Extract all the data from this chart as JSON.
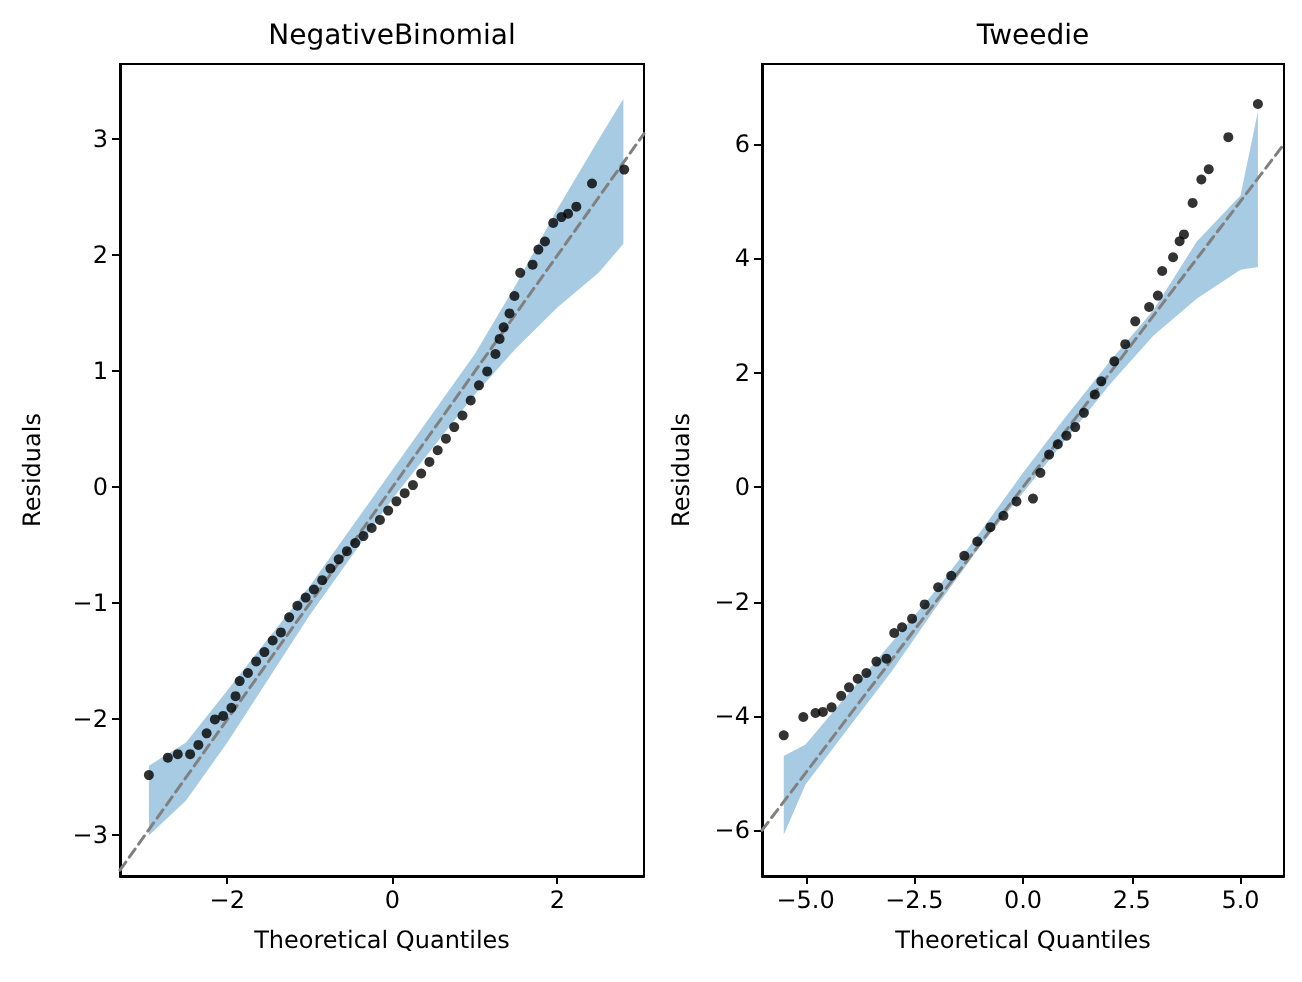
{
  "chart_data": [
    {
      "type": "scatter",
      "title": "NegativeBinomial",
      "xlabel": "Theoretical Quantiles",
      "ylabel": "Residuals",
      "xlim": [
        -3.3,
        3.05
      ],
      "ylim": [
        -3.35,
        3.65
      ],
      "xticks": [
        -2,
        0,
        2
      ],
      "yticks": [
        -3,
        -2,
        -1,
        0,
        1,
        2,
        3
      ],
      "grid": false,
      "marker": "circle",
      "series": [
        {
          "type": "line",
          "marker": "none",
          "color": "#808080",
          "line_style": "dashed",
          "x": [
            -3.3,
            -2.95,
            -2.5,
            -2,
            -1.5,
            -1,
            -0.5,
            0,
            0.5,
            1,
            1.5,
            2,
            2.5,
            2.8,
            3.05
          ],
          "values": [
            -3.3,
            -2.95,
            -2.5,
            -2,
            -1.5,
            -1,
            -0.5,
            0,
            0.5,
            1,
            1.5,
            2,
            2.5,
            2.8,
            3.05
          ],
          "lower": [
            null,
            -3.0,
            -2.7,
            -2.2,
            -1.65,
            -1.1,
            -0.6,
            -0.1,
            0.35,
            0.8,
            1.2,
            1.55,
            1.85,
            2.1,
            null
          ],
          "upper": [
            null,
            -2.4,
            -2.2,
            -1.75,
            -1.3,
            -0.85,
            -0.35,
            0.15,
            0.65,
            1.15,
            1.75,
            2.4,
            3.0,
            3.35,
            null
          ]
        },
        {
          "color": "#000000",
          "x": [
            -2.95,
            -2.72,
            -2.6,
            -2.45,
            -2.35,
            -2.25,
            -2.15,
            -2.05,
            -1.95,
            -1.9,
            -1.85,
            -1.75,
            -1.65,
            -1.55,
            -1.45,
            -1.35,
            -1.25,
            -1.15,
            -1.05,
            -0.95,
            -0.85,
            -0.75,
            -0.65,
            -0.55,
            -0.45,
            -0.35,
            -0.25,
            -0.15,
            -0.05,
            0.05,
            0.15,
            0.25,
            0.35,
            0.45,
            0.55,
            0.65,
            0.75,
            0.85,
            0.95,
            1.05,
            1.15,
            1.25,
            1.3,
            1.35,
            1.42,
            1.48,
            1.55,
            1.7,
            1.77,
            1.85,
            1.95,
            2.05,
            2.13,
            2.23,
            2.42,
            2.81
          ],
          "values": [
            -2.48,
            -2.33,
            -2.3,
            -2.3,
            -2.22,
            -2.12,
            -2.0,
            -1.97,
            -1.9,
            -1.8,
            -1.67,
            -1.6,
            -1.5,
            -1.42,
            -1.32,
            -1.25,
            -1.12,
            -1.02,
            -0.95,
            -0.88,
            -0.8,
            -0.7,
            -0.62,
            -0.55,
            -0.48,
            -0.42,
            -0.35,
            -0.28,
            -0.2,
            -0.12,
            -0.05,
            0.02,
            0.12,
            0.22,
            0.32,
            0.42,
            0.52,
            0.62,
            0.75,
            0.88,
            1.0,
            1.15,
            1.28,
            1.38,
            1.5,
            1.65,
            1.85,
            1.92,
            2.05,
            2.12,
            2.28,
            2.33,
            2.36,
            2.42,
            2.62,
            2.74
          ]
        }
      ]
    },
    {
      "type": "scatter",
      "title": "Tweedie",
      "xlabel": "Theoretical Quantiles",
      "ylabel": "Residuals",
      "xlim": [
        -6,
        6
      ],
      "ylim": [
        -6.8,
        7.4
      ],
      "xticks": [
        {
          "value": -5,
          "label": "−5.0"
        },
        {
          "value": -2.5,
          "label": "−2.5"
        },
        {
          "value": 0,
          "label": "0.0"
        },
        {
          "value": 2.5,
          "label": "2.5"
        },
        {
          "value": 5,
          "label": "5.0"
        }
      ],
      "yticks": [
        -6,
        -4,
        -2,
        0,
        2,
        4,
        6
      ],
      "grid": false,
      "marker": "circle",
      "series": [
        {
          "type": "line",
          "marker": "none",
          "color": "#808080",
          "line_style": "dashed",
          "x": [
            -6,
            -5.5,
            -5,
            -4,
            -3,
            -2,
            -1,
            0,
            1,
            2,
            3,
            4,
            5,
            5.4,
            6
          ],
          "values": [
            -6,
            -5.5,
            -5,
            -4,
            -3,
            -2,
            -1,
            0,
            1,
            2,
            3,
            4,
            5,
            5.4,
            6
          ],
          "lower": [
            null,
            -6.08,
            -5.2,
            -4.2,
            -3.2,
            -2.1,
            -1.05,
            -0.1,
            0.85,
            1.8,
            2.65,
            3.3,
            3.8,
            3.85,
            null
          ],
          "upper": [
            null,
            -4.7,
            -4.5,
            -3.6,
            -2.7,
            -1.8,
            -0.8,
            0.25,
            1.25,
            2.2,
            3.1,
            4.3,
            5.1,
            6.57,
            null
          ]
        },
        {
          "color": "#000000",
          "x": [
            -5.5,
            -5.05,
            -4.77,
            -4.6,
            -4.4,
            -4.18,
            -4.0,
            -3.8,
            -3.6,
            -3.37,
            -3.14,
            -2.96,
            -2.78,
            -2.55,
            -2.26,
            -1.95,
            -1.65,
            -1.35,
            -1.05,
            -0.75,
            -0.45,
            -0.15,
            0.23,
            0.4,
            0.6,
            0.8,
            1.0,
            1.2,
            1.4,
            1.65,
            1.8,
            2.1,
            2.35,
            2.58,
            2.9,
            3.1,
            3.2,
            3.45,
            3.6,
            3.7,
            3.9,
            4.1,
            4.27,
            4.72,
            5.4
          ],
          "values": [
            -4.34,
            -4.02,
            -3.95,
            -3.93,
            -3.85,
            -3.65,
            -3.5,
            -3.35,
            -3.25,
            -3.05,
            -3.0,
            -2.55,
            -2.45,
            -2.3,
            -2.05,
            -1.75,
            -1.55,
            -1.2,
            -0.95,
            -0.7,
            -0.5,
            -0.25,
            -0.2,
            0.25,
            0.57,
            0.75,
            0.9,
            1.05,
            1.3,
            1.62,
            1.85,
            2.2,
            2.5,
            2.9,
            3.15,
            3.35,
            3.78,
            4.02,
            4.3,
            4.42,
            4.97,
            5.38,
            5.56,
            6.12,
            6.7
          ]
        }
      ]
    }
  ]
}
